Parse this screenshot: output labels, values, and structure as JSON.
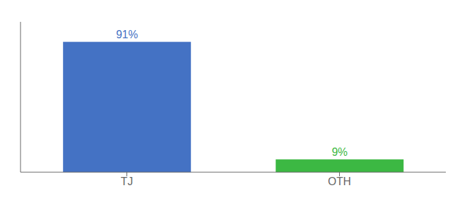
{
  "chart_data": {
    "type": "bar",
    "categories": [
      "TJ",
      "OTH"
    ],
    "values": [
      91,
      9
    ],
    "value_labels": [
      "91%",
      "9%"
    ],
    "colors": [
      "#4472c4",
      "#3cb843"
    ],
    "ylim": [
      0,
      105
    ],
    "data_labels": true,
    "tick_labels": "x",
    "grid": false
  }
}
